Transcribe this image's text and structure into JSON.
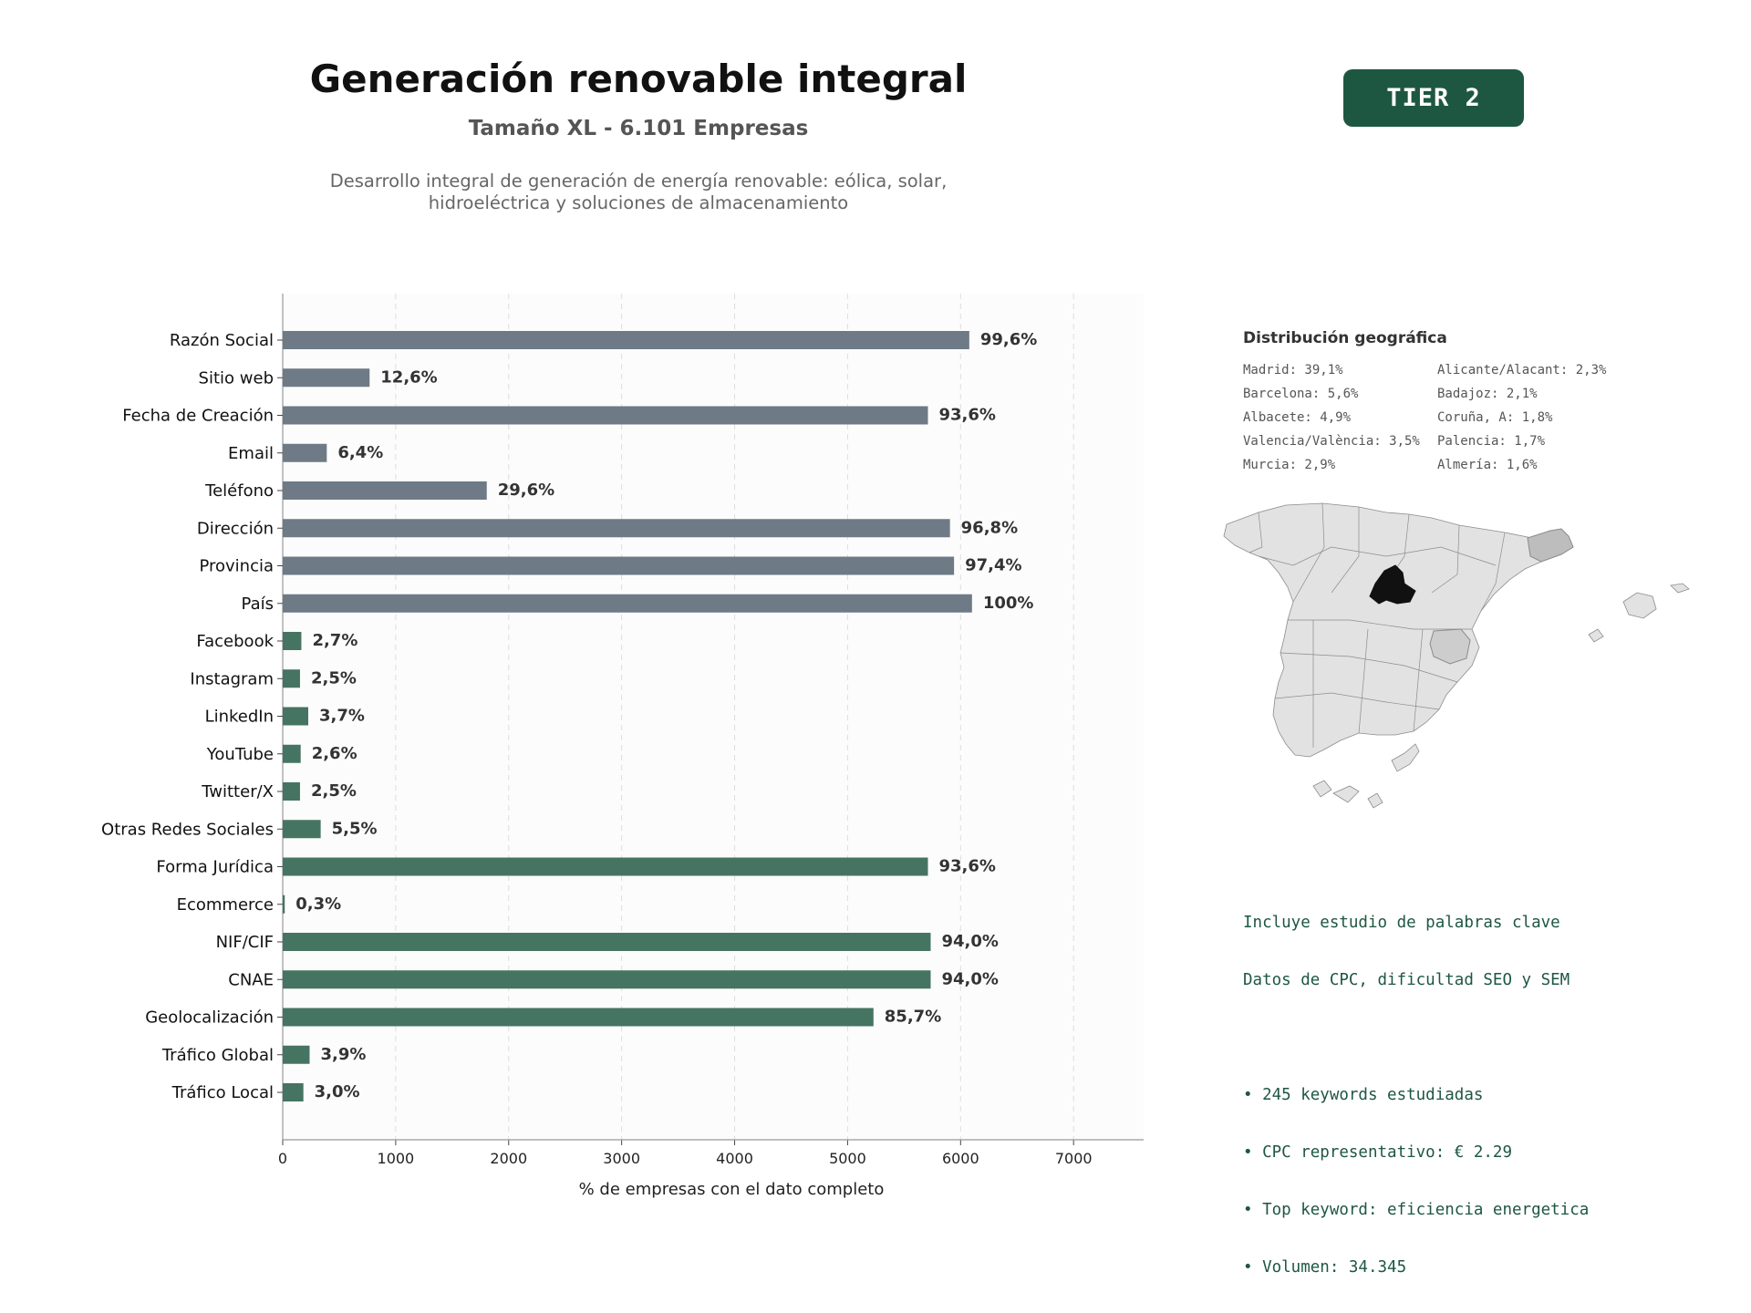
{
  "header": {
    "title": "Generación renovable integral",
    "subtitle": "Tamaño XL - 6.101 Empresas",
    "description_lines": [
      "Desarrollo integral de generación de energía renovable: eólica, solar,",
      "hidroeléctrica y soluciones de almacenamiento"
    ],
    "tier_badge": "TIER 2"
  },
  "chart_data": {
    "type": "bar",
    "orientation": "horizontal",
    "xlabel": "% de empresas con el dato completo",
    "xlim": [
      0,
      7620
    ],
    "xticks": [
      0,
      1000,
      2000,
      3000,
      4000,
      5000,
      6000,
      7000
    ],
    "grid": true,
    "total": 6101,
    "colors": {
      "identity": "#6e7a86",
      "digital": "#467462"
    },
    "bars": [
      {
        "label": "Razón Social",
        "value": 6077,
        "pct_label": "99,6%",
        "group": "identity"
      },
      {
        "label": "Sitio web",
        "value": 769,
        "pct_label": "12,6%",
        "group": "identity"
      },
      {
        "label": "Fecha de Creación",
        "value": 5711,
        "pct_label": "93,6%",
        "group": "identity"
      },
      {
        "label": "Email",
        "value": 390,
        "pct_label": "6,4%",
        "group": "identity"
      },
      {
        "label": "Teléfono",
        "value": 1806,
        "pct_label": "29,6%",
        "group": "identity"
      },
      {
        "label": "Dirección",
        "value": 5906,
        "pct_label": "96,8%",
        "group": "identity"
      },
      {
        "label": "Provincia",
        "value": 5942,
        "pct_label": "97,4%",
        "group": "identity"
      },
      {
        "label": "País",
        "value": 6101,
        "pct_label": "100%",
        "group": "identity"
      },
      {
        "label": "Facebook",
        "value": 165,
        "pct_label": "2,7%",
        "group": "digital"
      },
      {
        "label": "Instagram",
        "value": 153,
        "pct_label": "2,5%",
        "group": "digital"
      },
      {
        "label": "LinkedIn",
        "value": 226,
        "pct_label": "3,7%",
        "group": "digital"
      },
      {
        "label": "YouTube",
        "value": 159,
        "pct_label": "2,6%",
        "group": "digital"
      },
      {
        "label": "Twitter/X",
        "value": 153,
        "pct_label": "2,5%",
        "group": "digital"
      },
      {
        "label": "Otras Redes Sociales",
        "value": 336,
        "pct_label": "5,5%",
        "group": "digital"
      },
      {
        "label": "Forma Jurídica",
        "value": 5711,
        "pct_label": "93,6%",
        "group": "digital"
      },
      {
        "label": "Ecommerce",
        "value": 18,
        "pct_label": "0,3%",
        "group": "digital"
      },
      {
        "label": "NIF/CIF",
        "value": 5735,
        "pct_label": "94,0%",
        "group": "digital"
      },
      {
        "label": "CNAE",
        "value": 5735,
        "pct_label": "94,0%",
        "group": "digital"
      },
      {
        "label": "Geolocalización",
        "value": 5229,
        "pct_label": "85,7%",
        "group": "digital"
      },
      {
        "label": "Tráfico Global",
        "value": 238,
        "pct_label": "3,9%",
        "group": "digital"
      },
      {
        "label": "Tráfico Local",
        "value": 183,
        "pct_label": "3,0%",
        "group": "digital"
      }
    ]
  },
  "geo": {
    "title": "Distribución geográfica",
    "items": [
      "Madrid: 39,1%",
      "Barcelona: 5,6%",
      "Albacete: 4,9%",
      "Valencia/València: 3,5%",
      "Murcia: 2,9%",
      "Alicante/Alacant: 2,3%",
      "Badajoz: 2,1%",
      "Coruña, A: 1,8%",
      "Palencia: 1,7%",
      "Almería: 1,6%"
    ],
    "map_colors": {
      "base": "#e2e2e2",
      "madrid": "#111111",
      "barcelona": "#bdbdbd",
      "albacete": "#cdcdcd",
      "border": "#8c8c8c"
    }
  },
  "keywords": {
    "lines": [
      "Incluye estudio de palabras clave",
      "Datos de CPC, dificultad SEO y SEM",
      "",
      "• 245 keywords estudiadas",
      "• CPC representativo: € 2.29",
      "• Top keyword: eficiencia energetica",
      "• Volumen: 34.345"
    ]
  }
}
